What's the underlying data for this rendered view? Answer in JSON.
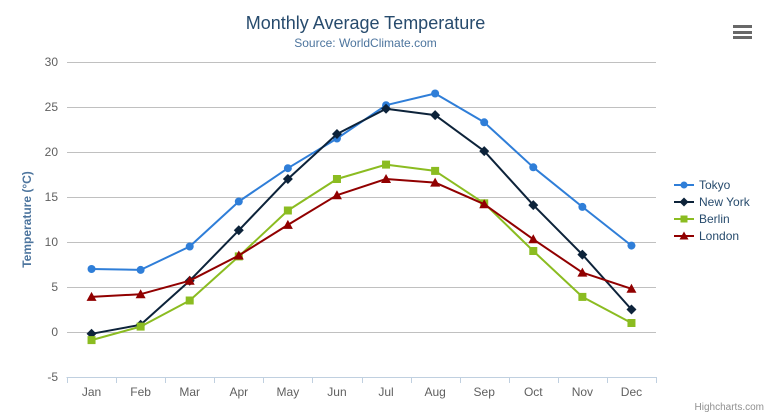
{
  "chart": {
    "title": "Monthly Average Temperature",
    "subtitle": "Source: WorldClimate.com",
    "credits": "Highcharts.com",
    "export_icon": "hamburger-icon"
  },
  "chart_data": {
    "type": "line",
    "title": "Monthly Average Temperature",
    "subtitle": "Source: WorldClimate.com",
    "categories": [
      "Jan",
      "Feb",
      "Mar",
      "Apr",
      "May",
      "Jun",
      "Jul",
      "Aug",
      "Sep",
      "Oct",
      "Nov",
      "Dec"
    ],
    "series": [
      {
        "name": "Tokyo",
        "color": "#2f7ed8",
        "marker": "circle",
        "values": [
          7.0,
          6.9,
          9.5,
          14.5,
          18.2,
          21.5,
          25.2,
          26.5,
          23.3,
          18.3,
          13.9,
          9.6
        ]
      },
      {
        "name": "New York",
        "color": "#0d233a",
        "marker": "diamond",
        "values": [
          -0.2,
          0.8,
          5.7,
          11.3,
          17.0,
          22.0,
          24.8,
          24.1,
          20.1,
          14.1,
          8.6,
          2.5
        ]
      },
      {
        "name": "Berlin",
        "color": "#8bbc21",
        "marker": "square",
        "values": [
          -0.9,
          0.6,
          3.5,
          8.4,
          13.5,
          17.0,
          18.6,
          17.9,
          14.3,
          9.0,
          3.9,
          1.0
        ]
      },
      {
        "name": "London",
        "color": "#910000",
        "marker": "triangle",
        "values": [
          3.9,
          4.2,
          5.7,
          8.5,
          11.9,
          15.2,
          17.0,
          16.6,
          14.2,
          10.3,
          6.6,
          4.8
        ]
      }
    ],
    "xlabel": "",
    "ylabel": "Temperature (°C)",
    "ylim": [
      -5,
      30
    ],
    "ytick_interval": 5,
    "grid": true,
    "legend_position": "right"
  },
  "colors": {
    "title": "#274b6d",
    "subtitle": "#4d759e",
    "axis_label": "#606060",
    "axis_title": "#4d759e",
    "grid_line": "#c0c0c0",
    "axis_line": "#c0d0e0",
    "legend_text": "#274b6d",
    "credits": "#909090",
    "export_icon": "#686868"
  }
}
